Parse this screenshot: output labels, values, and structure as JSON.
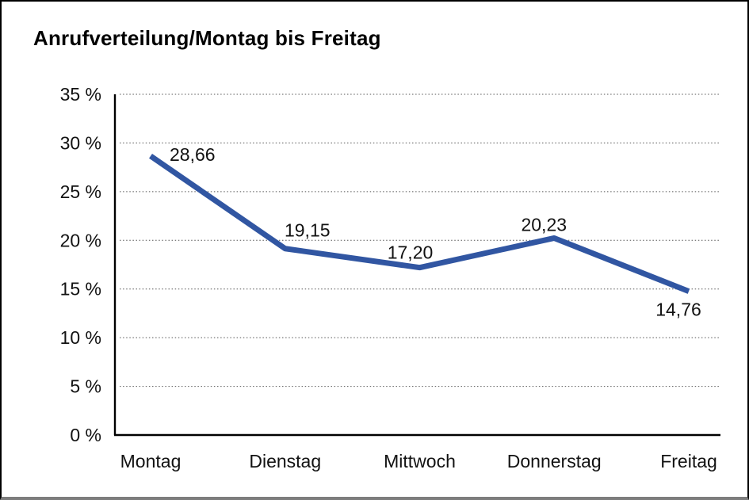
{
  "chart_data": {
    "type": "line",
    "title": "Anrufverteilung/Montag bis Freitag",
    "categories": [
      "Montag",
      "Dienstag",
      "Mittwoch",
      "Donnerstag",
      "Freitag"
    ],
    "values": [
      28.66,
      19.15,
      17.2,
      20.23,
      14.76
    ],
    "value_labels": [
      "28,66",
      "19,15",
      "17,20",
      "20,23",
      "14,76"
    ],
    "xlabel": "",
    "ylabel": "",
    "ylim": [
      0,
      35
    ],
    "y_ticks": [
      0,
      5,
      10,
      15,
      20,
      25,
      30,
      35
    ],
    "y_tick_labels": [
      "0 %",
      "5 %",
      "10 %",
      "15 %",
      "20 %",
      "25 %",
      "30 %",
      "35 %"
    ],
    "grid": "horizontal-dotted",
    "legend_position": "none",
    "line_color": "#3156A2",
    "axis_color": "#000000",
    "gridline_color": "#555555"
  }
}
